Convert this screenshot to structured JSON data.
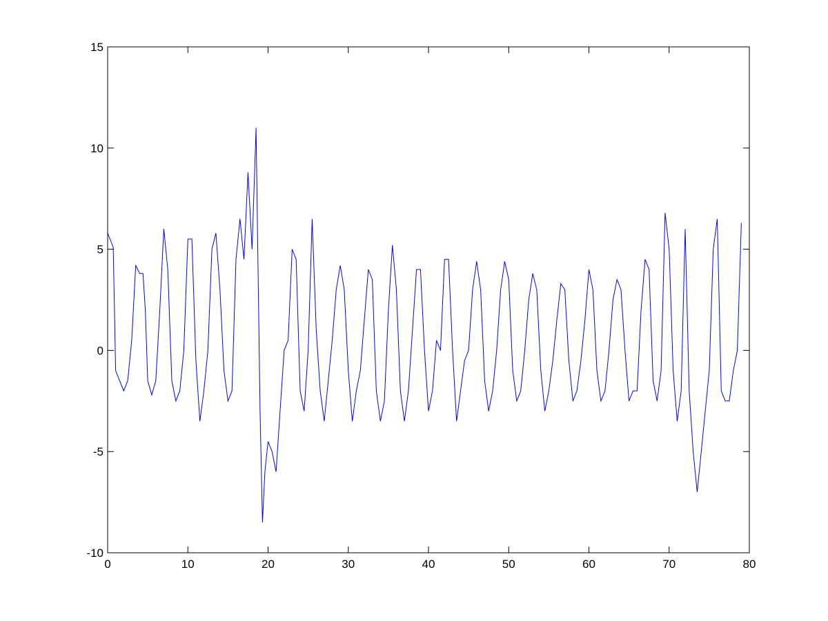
{
  "chart_data": {
    "type": "line",
    "title": "",
    "xlabel": "",
    "ylabel": "",
    "xlim": [
      0,
      80
    ],
    "ylim": [
      -10,
      15
    ],
    "x_ticks": [
      "0",
      "10",
      "20",
      "30",
      "40",
      "50",
      "60",
      "70",
      "80"
    ],
    "y_ticks": [
      "-10",
      "-5",
      "0",
      "5",
      "10",
      "15"
    ],
    "grid": false,
    "line_color": "#0000ff",
    "series": [
      {
        "x": [
          0,
          0.7,
          1,
          1.5,
          2,
          2.5,
          3,
          3.5,
          4,
          4.4,
          4.7,
          5,
          5.5,
          6,
          6.5,
          7,
          7.5,
          8,
          8.5,
          9,
          9.5,
          10,
          10.5,
          11,
          11.5,
          12,
          12.5,
          13,
          13.5,
          14,
          14.5,
          15,
          15.5,
          16,
          16.5,
          17,
          17.5,
          18,
          18.5,
          19,
          19.3,
          19.6,
          20,
          20.5,
          21,
          21.5,
          22,
          22.5,
          23,
          23.5,
          24,
          24.5,
          25,
          25.5,
          26,
          26.5,
          27,
          27.5,
          28,
          28.5,
          29,
          29.5,
          30,
          30.5,
          31,
          31.5,
          32,
          32.5,
          33,
          33.5,
          34,
          34.5,
          35,
          35.5,
          36,
          36.5,
          37,
          37.5,
          38,
          38.5,
          39,
          39.5,
          40,
          40.5,
          41,
          41.5,
          42,
          42.5,
          43,
          43.5,
          44,
          44.5,
          45,
          45.5,
          46,
          46.5,
          47,
          47.5,
          48,
          48.5,
          49,
          49.5,
          50,
          50.5,
          51,
          51.5,
          52,
          52.5,
          53,
          53.5,
          54,
          54.5,
          55,
          55.5,
          56,
          56.5,
          57,
          57.5,
          58,
          58.5,
          59,
          59.5,
          60,
          60.5,
          61,
          61.5,
          62,
          62.5,
          63,
          63.5,
          64,
          64.5,
          65,
          65.5,
          66,
          66.5,
          67,
          67.5,
          68,
          68.5,
          69,
          69.5,
          70,
          70.5,
          71,
          71.5,
          72,
          72.5,
          73,
          73.5,
          74,
          74.5,
          75,
          75.5,
          76,
          76.5,
          77,
          77.5,
          78,
          78.5,
          79
        ],
        "y": [
          5.8,
          5.1,
          -1,
          -1.5,
          -2,
          -1.5,
          0.5,
          4.2,
          3.8,
          3.8,
          2,
          -1.5,
          -2.2,
          -1.5,
          2,
          6,
          4,
          -1.5,
          -2.5,
          -2,
          0,
          5.5,
          5.5,
          -0.5,
          -3.5,
          -2,
          0,
          5,
          5.8,
          3,
          -1,
          -2.5,
          -2,
          4.5,
          6.5,
          4.5,
          8.8,
          5,
          11,
          -3,
          -8.5,
          -6,
          -4.5,
          -5,
          -6,
          -3,
          0,
          0.5,
          5,
          4.5,
          -2,
          -3,
          0,
          6.5,
          1,
          -2,
          -3.5,
          -1.5,
          0.5,
          3,
          4.2,
          3,
          -1,
          -3.5,
          -2,
          -1,
          1.5,
          4,
          3.5,
          -2,
          -3.5,
          -2.5,
          2,
          5.2,
          3,
          -2,
          -3.5,
          -2,
          1,
          4,
          4,
          0,
          -3,
          -2,
          0.5,
          0,
          4.5,
          4.5,
          0,
          -3.5,
          -2,
          -0.5,
          0,
          3,
          4.4,
          3,
          -1.5,
          -3,
          -2,
          0,
          3,
          4.4,
          3.5,
          -1,
          -2.5,
          -2,
          0,
          2.5,
          3.8,
          3,
          -1,
          -3,
          -2,
          -0.5,
          1.5,
          3.3,
          3,
          -0.5,
          -2.5,
          -2,
          -0.5,
          1.5,
          4,
          3,
          -1,
          -2.5,
          -2,
          0,
          2.5,
          3.5,
          3,
          0,
          -2.5,
          -2,
          -2,
          2,
          4.5,
          4,
          -1.5,
          -2.5,
          -1,
          6.8,
          5,
          -1,
          -3.5,
          -2,
          6,
          -2,
          -5,
          -7,
          -5,
          -3,
          -1,
          5,
          6.5,
          -2,
          -2.5,
          -2.5,
          -1,
          0,
          6.3
        ]
      }
    ]
  }
}
